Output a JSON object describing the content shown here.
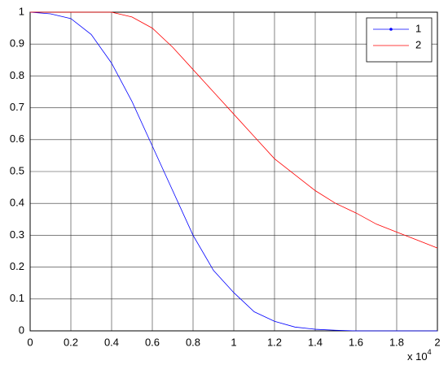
{
  "chart_data": {
    "type": "line",
    "x": [
      0,
      0.1,
      0.2,
      0.3,
      0.4,
      0.5,
      0.6,
      0.7,
      0.8,
      0.9,
      1,
      1.1,
      1.2,
      1.3,
      1.4,
      1.5,
      1.6,
      1.7,
      1.8,
      1.9,
      2
    ],
    "series": [
      {
        "name": "1",
        "color": "#0000ff",
        "marker": "point",
        "values": [
          1,
          0.995,
          0.98,
          0.93,
          0.84,
          0.72,
          0.58,
          0.44,
          0.3,
          0.19,
          0.12,
          0.06,
          0.03,
          0.012,
          0.005,
          0.002,
          0,
          0,
          0,
          0,
          0
        ]
      },
      {
        "name": "2",
        "color": "#ff0000",
        "values": [
          1,
          1,
          1,
          1,
          1,
          0.985,
          0.95,
          0.89,
          0.82,
          0.75,
          0.68,
          0.61,
          0.54,
          0.49,
          0.44,
          0.4,
          0.37,
          0.335,
          0.31,
          0.285,
          0.26
        ]
      }
    ],
    "xlim": [
      0,
      2
    ],
    "xticks": [
      0,
      0.2,
      0.4,
      0.6,
      0.8,
      1,
      1.2,
      1.4,
      1.6,
      1.8,
      2
    ],
    "ylim": [
      0,
      1
    ],
    "yticks": [
      0,
      0.1,
      0.2,
      0.3,
      0.4,
      0.5,
      0.6,
      0.7,
      0.8,
      0.9,
      1
    ],
    "x_multiplier": {
      "base": "x 10",
      "exponent": "4"
    },
    "grid": true,
    "legend": "top-right"
  }
}
